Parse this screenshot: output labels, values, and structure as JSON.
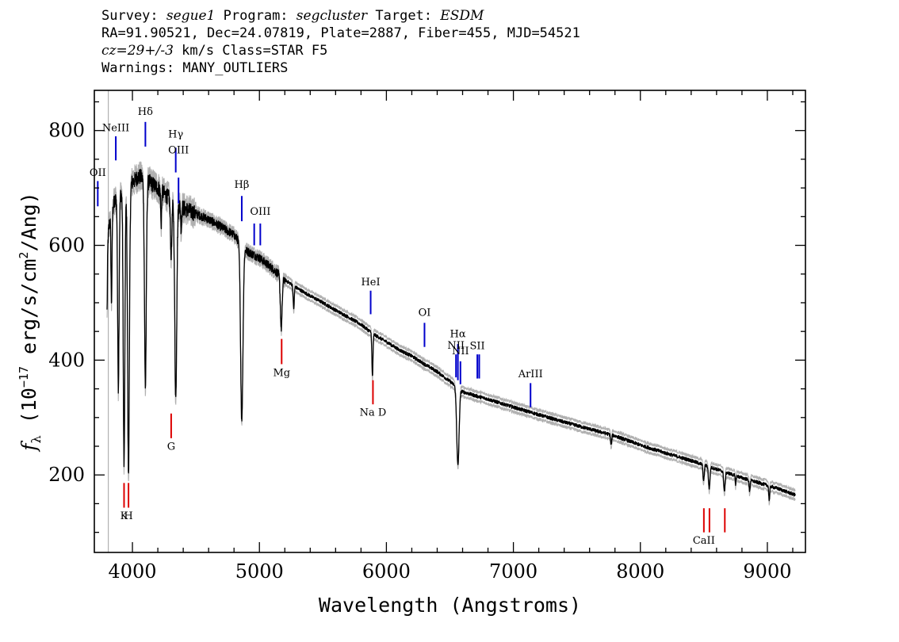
{
  "header": {
    "line1": {
      "survey_label": "Survey:",
      "survey": "segue1",
      "program_label": "Program:",
      "program": "segcluster",
      "target_label": "Target:",
      "target": "ESDM"
    },
    "line2": "RA=91.90521, Dec=24.07819, Plate=2887, Fiber=455, MJD=54521",
    "line3": {
      "cz": "cz=29+/-3",
      "rest": " km/s Class=STAR F5"
    },
    "line4": "Warnings: MANY_OUTLIERS"
  },
  "chart_data": {
    "type": "line",
    "xlabel": "Wavelength (Angstroms)",
    "ylabel": "f_λ (10^-17 erg/s/cm^2/Ang)",
    "ylabel_parts": {
      "f": "f",
      "lambda": "λ",
      "pre": " (10",
      "exp1": "−17",
      "mid": " erg/s/cm",
      "exp2": "2",
      "post": "/Ang)"
    },
    "xlim": [
      3700,
      9300
    ],
    "ylim": [
      65,
      870
    ],
    "x_ticks": [
      4000,
      5000,
      6000,
      7000,
      8000,
      9000
    ],
    "y_ticks": [
      200,
      400,
      600,
      800
    ],
    "grid": false,
    "colors": {
      "spectrum": "#000000",
      "noise": "#b0b0b0",
      "emission": "#0000cc",
      "absorption": "#dd0000"
    },
    "continuum": [
      [
        3800,
        600
      ],
      [
        3830,
        660
      ],
      [
        3870,
        680
      ],
      [
        3950,
        700
      ],
      [
        4000,
        710
      ],
      [
        4050,
        720
      ],
      [
        4100,
        715
      ],
      [
        4200,
        700
      ],
      [
        4300,
        680
      ],
      [
        4400,
        665
      ],
      [
        4500,
        655
      ],
      [
        4600,
        645
      ],
      [
        4700,
        632
      ],
      [
        4800,
        618
      ],
      [
        4900,
        590
      ],
      [
        5000,
        578
      ],
      [
        5100,
        560
      ],
      [
        5200,
        540
      ],
      [
        5300,
        525
      ],
      [
        5400,
        512
      ],
      [
        5500,
        500
      ],
      [
        5600,
        487
      ],
      [
        5700,
        475
      ],
      [
        5800,
        462
      ],
      [
        5900,
        445
      ],
      [
        6000,
        432
      ],
      [
        6100,
        418
      ],
      [
        6200,
        407
      ],
      [
        6300,
        393
      ],
      [
        6400,
        380
      ],
      [
        6500,
        363
      ],
      [
        6600,
        345
      ],
      [
        6700,
        338
      ],
      [
        6800,
        332
      ],
      [
        7000,
        318
      ],
      [
        7200,
        305
      ],
      [
        7400,
        292
      ],
      [
        7600,
        280
      ],
      [
        7800,
        268
      ],
      [
        8000,
        252
      ],
      [
        8200,
        238
      ],
      [
        8400,
        225
      ],
      [
        8600,
        210
      ],
      [
        8800,
        195
      ],
      [
        9000,
        182
      ],
      [
        9100,
        175
      ],
      [
        9220,
        165
      ]
    ],
    "absorption_features": [
      {
        "center": 3798,
        "depth": 130,
        "width": 6
      },
      {
        "center": 3835,
        "depth": 160,
        "width": 6
      },
      {
        "center": 3889,
        "depth": 330,
        "width": 8
      },
      {
        "center": 3934,
        "depth": 480,
        "width": 9
      },
      {
        "center": 3969,
        "depth": 500,
        "width": 10
      },
      {
        "center": 4102,
        "depth": 360,
        "width": 10
      },
      {
        "center": 4226,
        "depth": 60,
        "width": 5
      },
      {
        "center": 4305,
        "depth": 95,
        "width": 8
      },
      {
        "center": 4341,
        "depth": 340,
        "width": 11
      },
      {
        "center": 4384,
        "depth": 40,
        "width": 5
      },
      {
        "center": 4861,
        "depth": 305,
        "width": 13
      },
      {
        "center": 5172,
        "depth": 90,
        "width": 10
      },
      {
        "center": 5270,
        "depth": 40,
        "width": 6
      },
      {
        "center": 5890,
        "depth": 75,
        "width": 6
      },
      {
        "center": 6563,
        "depth": 135,
        "width": 13
      },
      {
        "center": 7770,
        "depth": 18,
        "width": 6
      },
      {
        "center": 8498,
        "depth": 28,
        "width": 7
      },
      {
        "center": 8542,
        "depth": 38,
        "width": 8
      },
      {
        "center": 8662,
        "depth": 34,
        "width": 8
      },
      {
        "center": 8750,
        "depth": 14,
        "width": 5
      },
      {
        "center": 8860,
        "depth": 18,
        "width": 6
      },
      {
        "center": 9015,
        "depth": 24,
        "width": 6
      }
    ],
    "line_markers": [
      {
        "label": "OII",
        "wavelength": 3727,
        "type": "emission",
        "y_low": 668,
        "y_high": 712,
        "label_y": 721
      },
      {
        "label": "NeIII",
        "wavelength": 3869,
        "type": "emission",
        "y_low": 748,
        "y_high": 790,
        "label_y": 799
      },
      {
        "label": "Hδ",
        "wavelength": 4102,
        "type": "emission",
        "y_low": 772,
        "y_high": 815,
        "label_y": 827
      },
      {
        "label": "Hγ",
        "wavelength": 4341,
        "type": "emission",
        "y_low": 727,
        "y_high": 770,
        "label_y": 788
      },
      {
        "label": "OIII",
        "wavelength": 4363,
        "type": "emission",
        "y_low": 673,
        "y_high": 718,
        "label_y": 760
      },
      {
        "label": "Hβ",
        "wavelength": 4861,
        "type": "emission",
        "y_low": 642,
        "y_high": 686,
        "label_y": 700
      },
      {
        "label": "",
        "wavelength": 4959,
        "type": "emission",
        "y_low": 600,
        "y_high": 638,
        "label_y": 0
      },
      {
        "label": "OIII",
        "wavelength": 5007,
        "type": "emission",
        "y_low": 600,
        "y_high": 638,
        "label_y": 653
      },
      {
        "label": "HeI",
        "wavelength": 5876,
        "type": "emission",
        "y_low": 480,
        "y_high": 521,
        "label_y": 530
      },
      {
        "label": "OI",
        "wavelength": 6300,
        "type": "emission",
        "y_low": 423,
        "y_high": 465,
        "label_y": 477
      },
      {
        "label": "Hα",
        "wavelength": 6563,
        "type": "emission",
        "y_low": 365,
        "y_high": 428,
        "label_y": 440
      },
      {
        "label": "NII",
        "wavelength": 6548,
        "type": "emission",
        "y_low": 370,
        "y_high": 410,
        "label_y": 420
      },
      {
        "label": "NII",
        "wavelength": 6583,
        "type": "emission",
        "y_low": 358,
        "y_high": 398,
        "label_y": 410
      },
      {
        "label": "SII",
        "wavelength": 6716,
        "type": "emission",
        "y_low": 368,
        "y_high": 410,
        "label_y": 419
      },
      {
        "label": "",
        "wavelength": 6731,
        "type": "emission",
        "y_low": 368,
        "y_high": 410,
        "label_y": 0
      },
      {
        "label": "ArIII",
        "wavelength": 7135,
        "type": "emission",
        "y_low": 318,
        "y_high": 360,
        "label_y": 370
      },
      {
        "label": "K",
        "wavelength": 3934,
        "type": "absorption",
        "y_low": 143,
        "y_high": 186,
        "label_y": 123
      },
      {
        "label": "H",
        "wavelength": 3969,
        "type": "absorption",
        "y_low": 143,
        "y_high": 186,
        "label_y": 123
      },
      {
        "label": "G",
        "wavelength": 4305,
        "type": "absorption",
        "y_low": 264,
        "y_high": 307,
        "label_y": 244
      },
      {
        "label": "Mg",
        "wavelength": 5175,
        "type": "absorption",
        "y_low": 393,
        "y_high": 437,
        "label_y": 372
      },
      {
        "label": "Na D",
        "wavelength": 5894,
        "type": "absorption",
        "y_low": 323,
        "y_high": 365,
        "label_y": 303
      },
      {
        "label": "CaII",
        "wavelength": 8500,
        "type": "absorption",
        "y_low": 100,
        "y_high": 142,
        "label_y": 80
      },
      {
        "label": "",
        "wavelength": 8544,
        "type": "absorption",
        "y_low": 100,
        "y_high": 142,
        "label_y": 0
      },
      {
        "label": "",
        "wavelength": 8665,
        "type": "absorption",
        "y_low": 100,
        "y_high": 142,
        "label_y": 0
      }
    ]
  }
}
